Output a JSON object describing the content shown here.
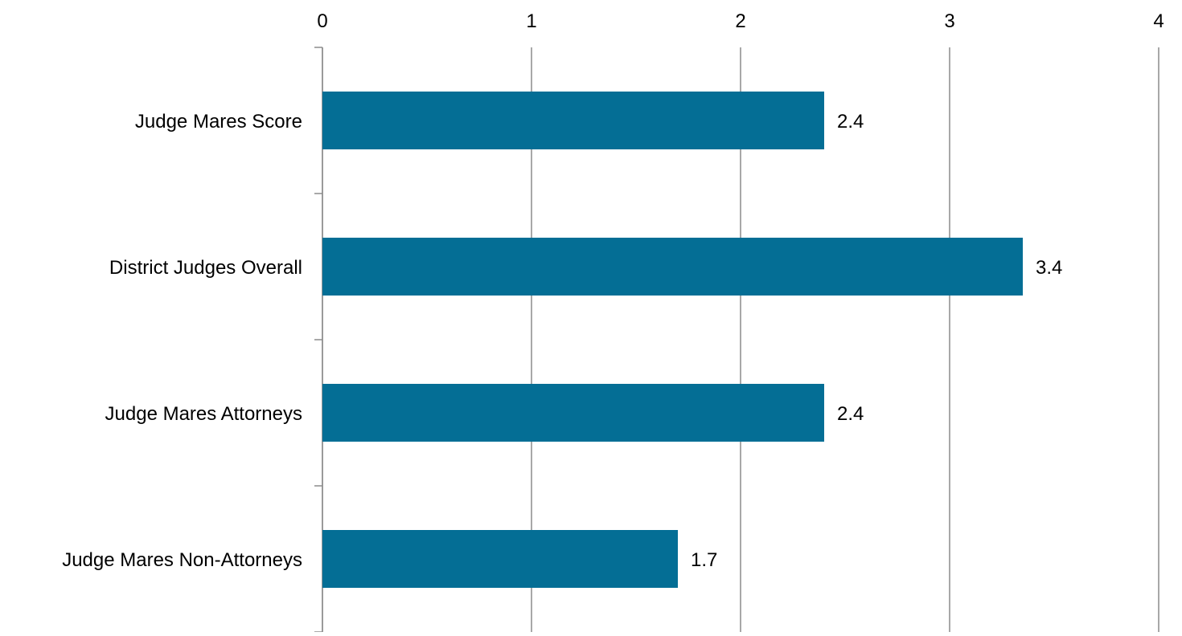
{
  "chart_data": {
    "type": "bar",
    "orientation": "horizontal",
    "categories": [
      "Judge Mares Score",
      "District Judges Overall",
      "Judge Mares Attorneys",
      "Judge Mares Non-Attorneys"
    ],
    "values": [
      2.4,
      3.35,
      2.4,
      1.7
    ],
    "data_labels": [
      "2.4",
      "3.4",
      "2.4",
      "1.7"
    ],
    "x_ticks": [
      "0",
      "1",
      "2",
      "3",
      "4"
    ],
    "xlim": [
      0,
      4
    ],
    "x_axis_position": "top",
    "title": "",
    "xlabel": "",
    "ylabel": "",
    "grid": true,
    "legend": "none",
    "colors": {
      "bar": "#046E95",
      "grid": "#8C8C8C",
      "axis": "#8C8C8C",
      "text": "#000000"
    }
  }
}
